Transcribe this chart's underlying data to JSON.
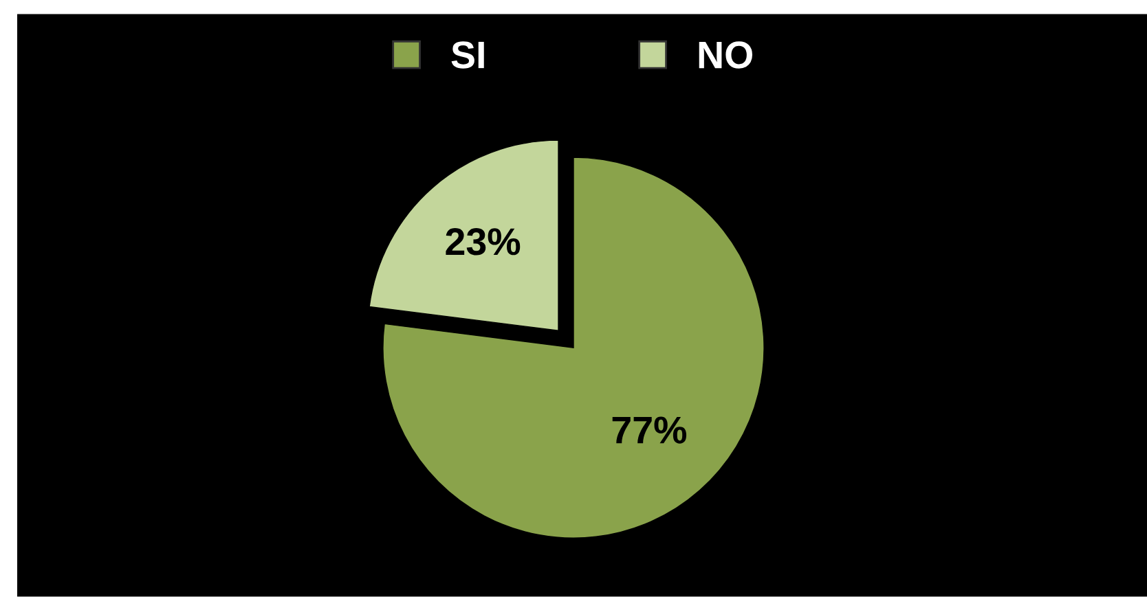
{
  "chart_data": {
    "type": "pie",
    "categories": [
      "SI",
      "NO"
    ],
    "values": [
      77,
      23
    ],
    "colors": [
      "#8aa34b",
      "#c3d69b"
    ],
    "value_labels": [
      "77%",
      "23%"
    ],
    "legend": "top"
  }
}
